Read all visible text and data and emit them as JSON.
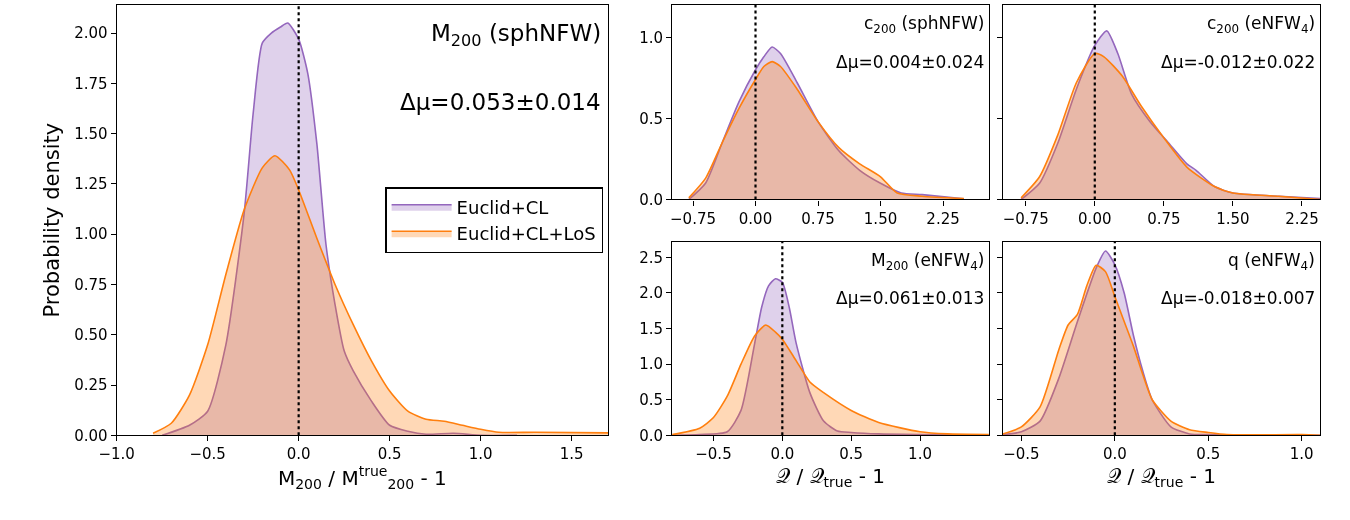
{
  "chart_data": [
    {
      "type": "area",
      "ylabel": "Probability density",
      "xlabel": "M$_{200}$ / M$^{true}$$_{200}$ - 1",
      "legend": "right",
      "annotations": [
        "M$_{200}$ (sphNFW)",
        "Δμ=0.053±0.014"
      ],
      "xlim": [
        -1.0,
        1.7
      ],
      "xticks": [
        {
          "value": -1.0,
          "label": "−1.0"
        },
        {
          "value": -0.5,
          "label": "−0.5"
        },
        {
          "value": 0,
          "label": "0.0"
        },
        {
          "value": 0.5,
          "label": "0.5"
        },
        {
          "value": 1.0,
          "label": "1.0"
        },
        {
          "value": 1.5,
          "label": "1.5"
        }
      ],
      "ylim": [
        0,
        2.14
      ],
      "yticks": [
        {
          "value": 0,
          "label": "0.00"
        },
        {
          "value": 0.25,
          "label": "0.25"
        },
        {
          "value": 0.5,
          "label": "0.50"
        },
        {
          "value": 0.75,
          "label": "0.75"
        },
        {
          "value": 1.0,
          "label": "1.00"
        },
        {
          "value": 1.25,
          "label": "1.25"
        },
        {
          "value": 1.5,
          "label": "1.50"
        },
        {
          "value": 1.75,
          "label": "1.75"
        },
        {
          "value": 2.0,
          "label": "2.00"
        }
      ],
      "ref_lines": [
        {
          "axis": "x",
          "value": 0,
          "color": "#000000",
          "line_style": "dotted"
        }
      ],
      "series": [
        {
          "name": "Euclid+CL",
          "color": "#9467bd",
          "x": [
            -0.75,
            -0.6,
            -0.5,
            -0.4,
            -0.3,
            -0.25,
            -0.2,
            -0.15,
            -0.1,
            -0.06,
            0,
            0.05,
            0.1,
            0.15,
            0.2,
            0.25,
            0.3,
            0.4,
            0.5,
            0.6,
            0.7,
            0.85,
            1.0,
            1.2
          ],
          "values": [
            0,
            0.05,
            0.12,
            0.45,
            1.1,
            1.6,
            1.95,
            2.0,
            2.03,
            2.05,
            1.97,
            1.8,
            1.45,
            0.95,
            0.65,
            0.42,
            0.32,
            0.17,
            0.05,
            0.02,
            0.005,
            0.01,
            0,
            0
          ]
        },
        {
          "name": "Euclid+CL+LoS",
          "color": "#ff7f0e",
          "x": [
            -0.8,
            -0.7,
            -0.6,
            -0.5,
            -0.4,
            -0.3,
            -0.2,
            -0.13,
            -0.05,
            0,
            0.1,
            0.2,
            0.3,
            0.4,
            0.5,
            0.6,
            0.7,
            0.8,
            0.9,
            1.0,
            1.1,
            1.3,
            1.7
          ],
          "values": [
            0.01,
            0.06,
            0.2,
            0.45,
            0.8,
            1.12,
            1.33,
            1.39,
            1.32,
            1.22,
            0.98,
            0.75,
            0.55,
            0.37,
            0.22,
            0.12,
            0.08,
            0.07,
            0.05,
            0.03,
            0.015,
            0.015,
            0.012
          ]
        }
      ]
    },
    {
      "type": "area",
      "annotations": [
        "c$_{200}$ (sphNFW)",
        "Δμ=0.004±0.024"
      ],
      "xlim": [
        -1.0,
        2.8
      ],
      "xticks": [
        {
          "value": -0.75,
          "label": "−0.75"
        },
        {
          "value": 0,
          "label": "0.00"
        },
        {
          "value": 0.75,
          "label": "0.75"
        },
        {
          "value": 1.5,
          "label": "1.50"
        },
        {
          "value": 2.25,
          "label": "2.25"
        }
      ],
      "ylim": [
        0,
        1.2
      ],
      "yticks": [
        {
          "value": 0,
          "label": "0.0"
        },
        {
          "value": 0.5,
          "label": "0.5"
        },
        {
          "value": 1.0,
          "label": "1.0"
        }
      ],
      "ref_lines": [
        {
          "axis": "x",
          "value": 0,
          "color": "#000000",
          "line_style": "dotted"
        }
      ],
      "series": [
        {
          "color": "#9467bd",
          "x": [
            -0.8,
            -0.6,
            -0.4,
            -0.2,
            0,
            0.1,
            0.2,
            0.3,
            0.5,
            0.75,
            1.0,
            1.25,
            1.5,
            1.75,
            2.0,
            2.5
          ],
          "values": [
            0,
            0.1,
            0.35,
            0.6,
            0.8,
            0.88,
            0.94,
            0.9,
            0.72,
            0.48,
            0.3,
            0.18,
            0.1,
            0.04,
            0.03,
            0.005
          ]
        },
        {
          "color": "#ff7f0e",
          "x": [
            -0.8,
            -0.6,
            -0.4,
            -0.2,
            0,
            0.1,
            0.2,
            0.3,
            0.5,
            0.75,
            1.0,
            1.25,
            1.5,
            1.7,
            2.0,
            2.5
          ],
          "values": [
            0.01,
            0.13,
            0.35,
            0.56,
            0.74,
            0.82,
            0.85,
            0.82,
            0.68,
            0.48,
            0.32,
            0.22,
            0.14,
            0.04,
            0.02,
            0.005
          ]
        }
      ]
    },
    {
      "type": "area",
      "annotations": [
        "c$_{200}$ (eNFW$_{4}$)",
        "Δμ=-0.012±0.022"
      ],
      "tick_labels": "x",
      "xlim": [
        -1.0,
        2.45
      ],
      "xticks": [
        {
          "value": -0.75,
          "label": "−0.75"
        },
        {
          "value": 0,
          "label": "0.00"
        },
        {
          "value": 0.75,
          "label": "0.75"
        },
        {
          "value": 1.5,
          "label": "1.50"
        },
        {
          "value": 2.25,
          "label": "2.25"
        }
      ],
      "ylim": [
        0,
        1.2
      ],
      "yticks": [
        {
          "value": 0,
          "label": null
        },
        {
          "value": 0.5,
          "label": null
        },
        {
          "value": 1.0,
          "label": null
        }
      ],
      "ref_lines": [
        {
          "axis": "x",
          "value": 0,
          "color": "#000000",
          "line_style": "dotted"
        }
      ],
      "series": [
        {
          "color": "#9467bd",
          "x": [
            -0.8,
            -0.6,
            -0.4,
            -0.2,
            0,
            0.13,
            0.25,
            0.4,
            0.6,
            0.8,
            1.0,
            1.1,
            1.3,
            1.5,
            2.0,
            2.45
          ],
          "values": [
            0,
            0.1,
            0.35,
            0.68,
            0.95,
            1.04,
            0.9,
            0.65,
            0.48,
            0.35,
            0.22,
            0.18,
            0.08,
            0.04,
            0.02,
            0.005
          ]
        },
        {
          "color": "#ff7f0e",
          "x": [
            -0.8,
            -0.6,
            -0.4,
            -0.2,
            0,
            0.1,
            0.3,
            0.5,
            0.75,
            1.0,
            1.3,
            1.5,
            2.0,
            2.45
          ],
          "values": [
            0.01,
            0.14,
            0.4,
            0.72,
            0.9,
            0.88,
            0.76,
            0.58,
            0.38,
            0.2,
            0.08,
            0.04,
            0.02,
            0
          ]
        }
      ]
    },
    {
      "type": "area",
      "xlabel": "𝒬 / 𝒬$_{true}$ - 1",
      "annotations": [
        "M$_{200}$ (eNFW$_{4}$)",
        "Δμ=0.061±0.013"
      ],
      "xlim": [
        -0.8,
        1.5
      ],
      "xticks": [
        {
          "value": -0.5,
          "label": "−0.5"
        },
        {
          "value": 0,
          "label": "0.0"
        },
        {
          "value": 0.5,
          "label": "0.5"
        },
        {
          "value": 1.0,
          "label": "1.0"
        }
      ],
      "ylim": [
        0,
        2.72
      ],
      "yticks": [
        {
          "value": 0,
          "label": "0.0"
        },
        {
          "value": 0.5,
          "label": "0.5"
        },
        {
          "value": 1.0,
          "label": "1.0"
        },
        {
          "value": 1.5,
          "label": "1.5"
        },
        {
          "value": 2.0,
          "label": "2.0"
        },
        {
          "value": 2.5,
          "label": "2.5"
        }
      ],
      "ref_lines": [
        {
          "axis": "x",
          "value": 0,
          "color": "#000000",
          "line_style": "dotted"
        }
      ],
      "series": [
        {
          "color": "#9467bd",
          "x": [
            -0.8,
            -0.6,
            -0.4,
            -0.3,
            -0.2,
            -0.15,
            -0.1,
            -0.05,
            0,
            0.05,
            0.1,
            0.2,
            0.3,
            0.4,
            0.5,
            0.7,
            1.0,
            1.5
          ],
          "values": [
            0,
            0.01,
            0.05,
            0.35,
            1.3,
            1.8,
            2.1,
            2.2,
            2.15,
            1.8,
            1.3,
            0.6,
            0.2,
            0.06,
            0.04,
            0.02,
            0.01,
            0
          ]
        },
        {
          "color": "#ff7f0e",
          "x": [
            -0.8,
            -0.6,
            -0.5,
            -0.4,
            -0.3,
            -0.2,
            -0.12,
            -0.05,
            0,
            0.1,
            0.2,
            0.3,
            0.5,
            0.7,
            1.0,
            1.2,
            1.5
          ],
          "values": [
            0.01,
            0.1,
            0.25,
            0.55,
            1.0,
            1.4,
            1.55,
            1.45,
            1.35,
            1.05,
            0.75,
            0.6,
            0.35,
            0.18,
            0.05,
            0.02,
            0.01
          ]
        }
      ]
    },
    {
      "type": "area",
      "xlabel": "𝒬 / 𝒬$_{true}$ - 1",
      "annotations": [
        "q (eNFW$_{4}$)",
        "Δμ=-0.018±0.007"
      ],
      "tick_labels": "x",
      "xlim": [
        -0.6,
        1.1
      ],
      "xticks": [
        {
          "value": -0.5,
          "label": "−0.5"
        },
        {
          "value": 0,
          "label": "0.0"
        },
        {
          "value": 0.5,
          "label": "0.5"
        },
        {
          "value": 1.0,
          "label": "1.0"
        }
      ],
      "ylim": [
        0,
        2.72
      ],
      "yticks": [
        {
          "value": 0,
          "label": null
        },
        {
          "value": 0.5,
          "label": null
        },
        {
          "value": 1.0,
          "label": null
        },
        {
          "value": 1.5,
          "label": null
        },
        {
          "value": 2.0,
          "label": null
        },
        {
          "value": 2.5,
          "label": null
        }
      ],
      "ref_lines": [
        {
          "axis": "x",
          "value": 0,
          "color": "#000000",
          "line_style": "dotted"
        }
      ],
      "series": [
        {
          "color": "#9467bd",
          "x": [
            -0.6,
            -0.5,
            -0.4,
            -0.3,
            -0.2,
            -0.1,
            -0.05,
            0,
            0.05,
            0.1,
            0.15,
            0.2,
            0.3,
            0.4,
            0.5,
            0.7,
            1.1
          ],
          "values": [
            0.01,
            0.05,
            0.2,
            0.8,
            1.6,
            2.35,
            2.59,
            2.4,
            2.0,
            1.4,
            0.9,
            0.5,
            0.12,
            0.02,
            0.01,
            0,
            0
          ]
        },
        {
          "color": "#ff7f0e",
          "x": [
            -0.6,
            -0.5,
            -0.4,
            -0.3,
            -0.25,
            -0.2,
            -0.15,
            -0.1,
            -0.05,
            0,
            0.05,
            0.1,
            0.15,
            0.2,
            0.3,
            0.4,
            0.5,
            0.6,
            1.0,
            1.1
          ],
          "values": [
            0.02,
            0.12,
            0.4,
            1.2,
            1.55,
            1.7,
            2.1,
            2.39,
            2.3,
            1.95,
            1.6,
            1.25,
            0.85,
            0.5,
            0.2,
            0.08,
            0.04,
            0.01,
            0.01,
            0
          ]
        }
      ]
    }
  ]
}
